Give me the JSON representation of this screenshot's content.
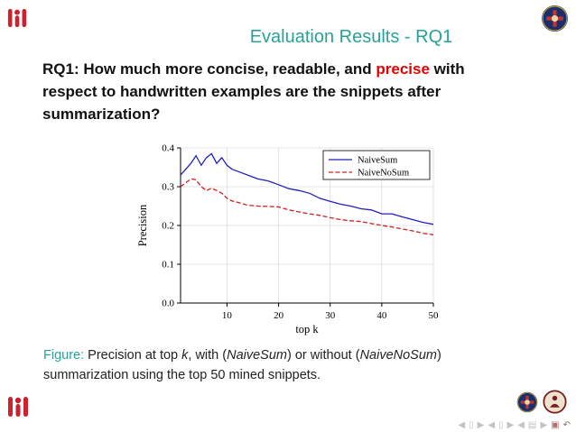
{
  "slide": {
    "title": "Evaluation Results - RQ1",
    "question": {
      "l1a": "RQ1: How much more concise, readable, and ",
      "l1b": "precise",
      "l1c": " with",
      "l2": "respect to handwritten examples are the snippets after",
      "l3": "summarization?"
    },
    "caption": {
      "label": "Figure:",
      "l1a": " Precision at top ",
      "k": "k",
      "l1b": ", with (",
      "n1": "NaiveSum",
      "l1c": ") or without (",
      "n2": "NaiveNoSum",
      "l1d": ")",
      "l2": "summarization using the top 50 mined snippets."
    },
    "colors": {
      "accent_teal": "#2aa198",
      "highlight_red": "#e60000",
      "series_blue": "#2020c0",
      "series_red": "#d02020",
      "logo_red": "#cf2030",
      "crest_navy": "#1b2f6e"
    },
    "nav_symbols": [
      "◀",
      "▯",
      "▶",
      "◀",
      "▯",
      "▶",
      "◀",
      "▤",
      "▶",
      "▣",
      "↶"
    ]
  },
  "chart_data": {
    "type": "line",
    "title": "",
    "xlabel": "top k",
    "ylabel": "Precision",
    "xlim": [
      1,
      50
    ],
    "ylim": [
      0,
      0.4
    ],
    "xticks": [
      10,
      20,
      30,
      40,
      50
    ],
    "yticks": [
      0.0,
      0.1,
      0.2,
      0.3,
      0.4
    ],
    "grid": true,
    "legend_position": "top-right",
    "series": [
      {
        "name": "NaiveSum",
        "color": "#2020c0",
        "line_style": "solid",
        "points": [
          [
            1,
            0.33
          ],
          [
            2,
            0.345
          ],
          [
            3,
            0.36
          ],
          [
            4,
            0.38
          ],
          [
            5,
            0.355
          ],
          [
            6,
            0.375
          ],
          [
            7,
            0.385
          ],
          [
            8,
            0.36
          ],
          [
            9,
            0.375
          ],
          [
            10,
            0.355
          ],
          [
            11,
            0.345
          ],
          [
            12,
            0.34
          ],
          [
            14,
            0.33
          ],
          [
            16,
            0.32
          ],
          [
            18,
            0.315
          ],
          [
            20,
            0.305
          ],
          [
            22,
            0.295
          ],
          [
            24,
            0.29
          ],
          [
            26,
            0.283
          ],
          [
            28,
            0.27
          ],
          [
            30,
            0.262
          ],
          [
            32,
            0.255
          ],
          [
            34,
            0.25
          ],
          [
            36,
            0.243
          ],
          [
            38,
            0.24
          ],
          [
            40,
            0.23
          ],
          [
            42,
            0.23
          ],
          [
            44,
            0.222
          ],
          [
            46,
            0.215
          ],
          [
            48,
            0.208
          ],
          [
            50,
            0.203
          ]
        ]
      },
      {
        "name": "NaiveNoSum",
        "color": "#d02020",
        "line_style": "dashed",
        "points": [
          [
            1,
            0.3
          ],
          [
            2,
            0.31
          ],
          [
            3,
            0.32
          ],
          [
            4,
            0.318
          ],
          [
            5,
            0.3
          ],
          [
            6,
            0.29
          ],
          [
            7,
            0.296
          ],
          [
            8,
            0.29
          ],
          [
            9,
            0.283
          ],
          [
            10,
            0.27
          ],
          [
            11,
            0.263
          ],
          [
            12,
            0.26
          ],
          [
            14,
            0.252
          ],
          [
            16,
            0.25
          ],
          [
            18,
            0.249
          ],
          [
            20,
            0.248
          ],
          [
            22,
            0.24
          ],
          [
            24,
            0.235
          ],
          [
            26,
            0.23
          ],
          [
            28,
            0.226
          ],
          [
            30,
            0.22
          ],
          [
            32,
            0.215
          ],
          [
            34,
            0.212
          ],
          [
            36,
            0.21
          ],
          [
            38,
            0.205
          ],
          [
            40,
            0.2
          ],
          [
            42,
            0.196
          ],
          [
            44,
            0.191
          ],
          [
            46,
            0.186
          ],
          [
            48,
            0.18
          ],
          [
            50,
            0.176
          ]
        ]
      }
    ]
  }
}
